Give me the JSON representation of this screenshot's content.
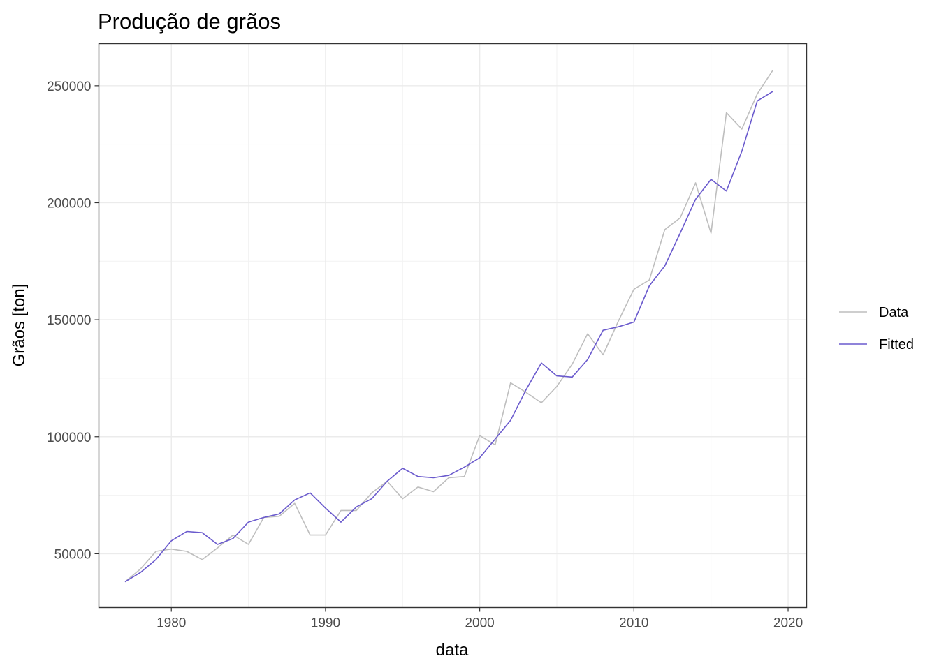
{
  "chart_data": {
    "type": "line",
    "title": "Produção de grãos",
    "xlabel": "data",
    "ylabel": "Grãos [ton]",
    "xlim": [
      1975.3,
      2021.2
    ],
    "ylim": [
      27000,
      268000
    ],
    "x_ticks": [
      1980,
      1990,
      2000,
      2010,
      2020
    ],
    "y_ticks": [
      50000,
      100000,
      150000,
      200000,
      250000
    ],
    "grid": true,
    "legend_position": "right",
    "x": [
      1977,
      1978,
      1979,
      1980,
      1981,
      1982,
      1983,
      1984,
      1985,
      1986,
      1987,
      1988,
      1989,
      1990,
      1991,
      1992,
      1993,
      1994,
      1995,
      1996,
      1997,
      1998,
      1999,
      2000,
      2001,
      2002,
      2003,
      2004,
      2005,
      2006,
      2007,
      2008,
      2009,
      2010,
      2011,
      2012,
      2013,
      2014,
      2015,
      2016,
      2017,
      2018,
      2019
    ],
    "series": [
      {
        "name": "Data",
        "color": "#bebebe",
        "values": [
          38000,
          43500,
          51000,
          52000,
          51000,
          47500,
          52500,
          58000,
          54000,
          65500,
          66000,
          71500,
          58000,
          58000,
          68500,
          68500,
          76000,
          81000,
          73500,
          78500,
          76500,
          82500,
          83000,
          100500,
          96500,
          123000,
          119000,
          114500,
          121500,
          131000,
          144000,
          135000,
          149500,
          163000,
          167000,
          188500,
          193500,
          208500,
          187000,
          238500,
          231500,
          246500,
          256500
        ]
      },
      {
        "name": "Fitted",
        "color": "#6a5acd",
        "values": [
          38000,
          42000,
          47500,
          55500,
          59500,
          59000,
          54000,
          56500,
          63500,
          65500,
          67000,
          73000,
          76000,
          69500,
          63500,
          70000,
          73500,
          81000,
          86500,
          83000,
          82500,
          83500,
          87000,
          91000,
          99000,
          107000,
          120000,
          131500,
          126000,
          125500,
          133000,
          145500,
          147000,
          149000,
          164500,
          173000,
          187000,
          201500,
          210000,
          205000,
          222000,
          243500,
          247500
        ]
      }
    ]
  }
}
